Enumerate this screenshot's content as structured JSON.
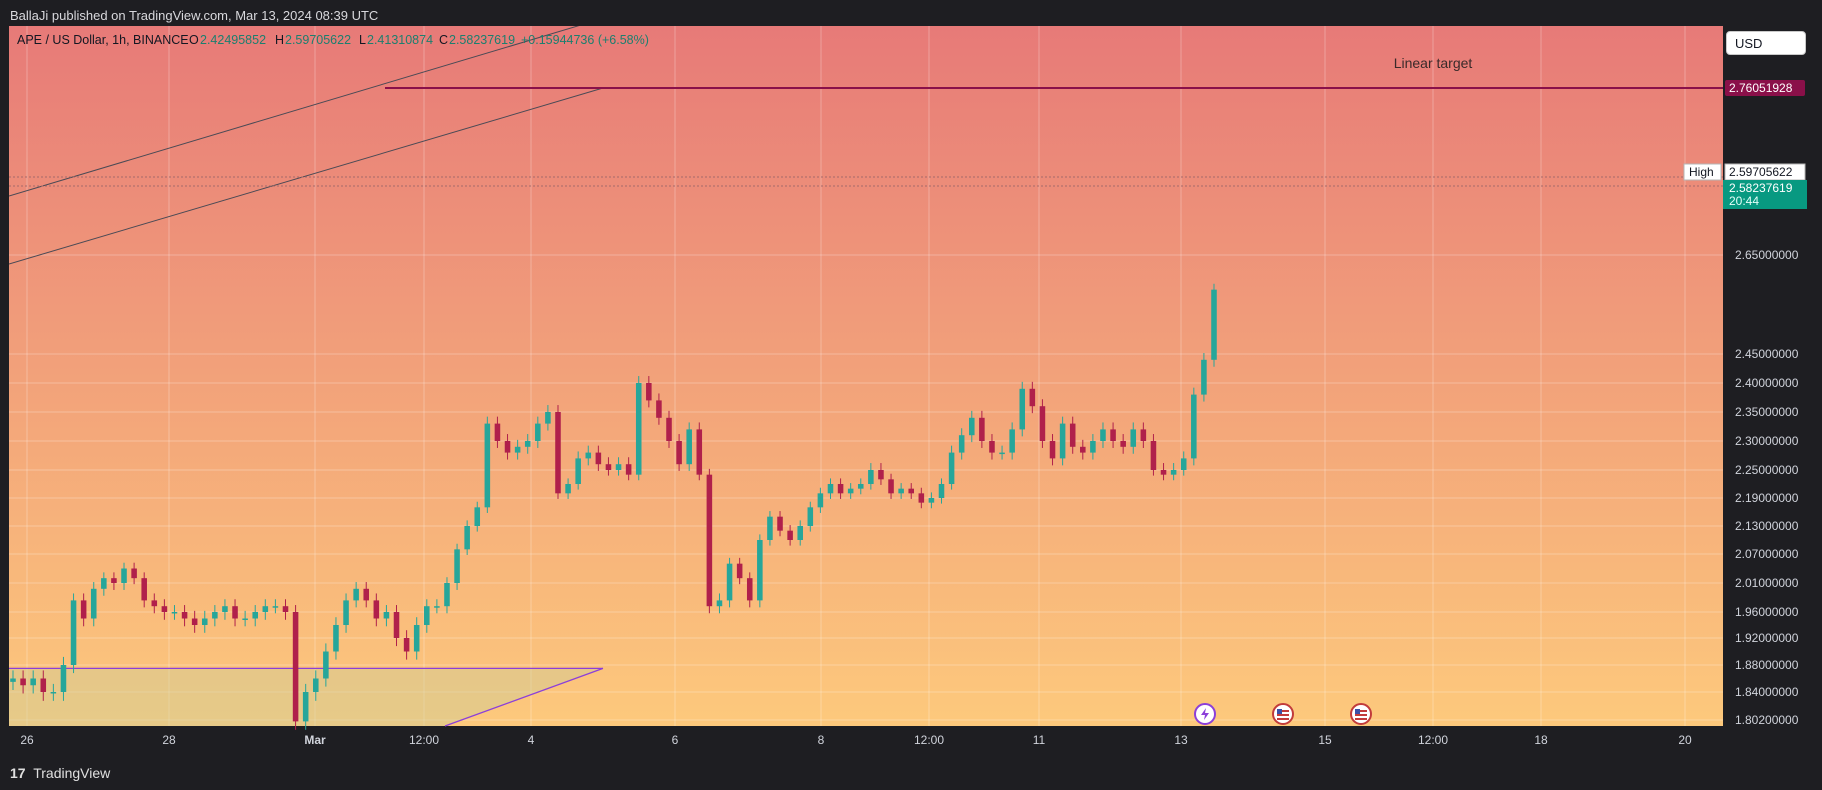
{
  "header": {
    "published_text": "BallaJi published on TradingView.com, Mar 13, 2024 08:39 UTC"
  },
  "legend": {
    "symbol": "APE / US Dollar, 1h, BINANCE",
    "o_label": "O",
    "o_value": "2.42495852",
    "h_label": "H",
    "h_value": "2.59705622",
    "l_label": "L",
    "l_value": "2.41310874",
    "c_label": "C",
    "c_value": "2.58237619",
    "change": "+0.15944736 (+6.58%)"
  },
  "currency_button": "USD",
  "annotations": {
    "linear_target": "Linear target"
  },
  "price_labels": {
    "target": "2.76051928",
    "high_tag": "High",
    "high_value": "2.59705622",
    "last_value": "2.58237619",
    "countdown": "20:44"
  },
  "footer": {
    "brand": "TradingView",
    "logo_glyph": "17"
  },
  "colors": {
    "up": "#26a69a",
    "down": "#b0204b",
    "target_line": "#8a1049",
    "current_tag": "#089981",
    "bg_top": "#e77a78",
    "bg_bottom": "#fdc97c",
    "zone_line": "#8c3fd9"
  },
  "chart_data": {
    "type": "candlestick",
    "title": "APE / US Dollar, 1h, BINANCE",
    "x_ticks": [
      "26",
      "28",
      "Mar",
      "12:00",
      "4",
      "6",
      "8",
      "12:00",
      "11",
      "13",
      "15",
      "12:00",
      "18",
      "20"
    ],
    "y_ticks": [
      "1.80200000",
      "1.84000000",
      "1.88000000",
      "1.92000000",
      "1.96000000",
      "2.01000000",
      "2.07000000",
      "2.13000000",
      "2.19000000",
      "2.25000000",
      "2.30000000",
      "2.35000000",
      "2.40000000",
      "2.45000000",
      "2.65000000"
    ],
    "y_range": [
      1.802,
      2.8
    ],
    "grid": true,
    "legend_position": "top-left",
    "last_close": 2.58237619,
    "high": 2.59705622,
    "target": 2.76051928,
    "event_icons": [
      "lightning-icon",
      "us-flag-icon",
      "us-flag-icon"
    ],
    "series": [
      {
        "values": [
          1.86,
          1.85,
          1.86,
          1.84,
          1.84,
          1.88,
          1.98,
          1.95,
          2.0,
          2.02,
          2.01,
          2.04,
          2.02,
          1.98,
          1.97,
          1.96,
          1.96,
          1.95,
          1.94,
          1.95,
          1.96,
          1.97,
          1.95,
          1.95,
          1.96,
          1.97,
          1.97,
          1.96,
          1.8,
          1.84,
          1.86,
          1.9,
          1.94,
          1.98,
          2.0,
          1.98,
          1.95,
          1.96,
          1.92,
          1.9,
          1.94,
          1.97,
          1.97,
          2.01,
          2.08,
          2.13,
          2.17,
          2.33,
          2.3,
          2.28,
          2.29,
          2.3,
          2.33,
          2.35,
          2.2,
          2.22,
          2.27,
          2.28,
          2.26,
          2.25,
          2.26,
          2.24,
          2.4,
          2.37,
          2.34,
          2.3,
          2.26,
          2.32,
          2.24,
          1.97,
          1.98,
          2.05,
          2.02,
          1.98,
          2.1,
          2.15,
          2.12,
          2.1,
          2.13,
          2.17,
          2.2,
          2.22,
          2.2,
          2.21,
          2.22,
          2.25,
          2.23,
          2.2,
          2.21,
          2.2,
          2.18,
          2.19,
          2.22,
          2.28,
          2.31,
          2.34,
          2.3,
          2.28,
          2.28,
          2.32,
          2.39,
          2.36,
          2.3,
          2.27,
          2.33,
          2.29,
          2.28,
          2.3,
          2.32,
          2.3,
          2.29,
          2.32,
          2.3,
          2.25,
          2.24,
          2.25,
          2.27,
          2.38,
          2.44,
          2.58
        ],
        "name": ""
      }
    ]
  }
}
